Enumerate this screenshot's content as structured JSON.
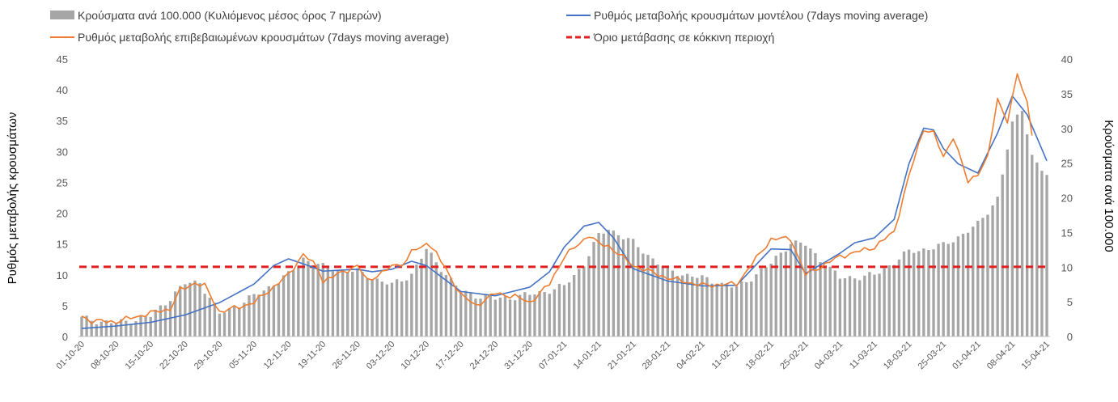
{
  "chart_data": {
    "type": "bar+line",
    "title": "",
    "legend": {
      "placement": "top",
      "entries": [
        {
          "name": "Κρούσματα ανά 100.000 (Κυλιόμενος μέσος όρος 7 ημερών)",
          "kind": "bar",
          "color": "#a6a6a6"
        },
        {
          "name": "Ρυθμός μεταβολής κρουσμάτων μοντέλου (7days moving average)",
          "kind": "line",
          "color": "#4472c4"
        },
        {
          "name": "Ρυθμός μεταβολής επιβεβαιωμένων κρουσμάτων (7days moving average)",
          "kind": "line",
          "color": "#ed7d31"
        },
        {
          "name": "Όριο μετάβασης σε κόκκινη περιοχή",
          "kind": "dashed",
          "color": "#e02020"
        }
      ]
    },
    "ylabel_left": "Ρυθμός μεταβολής κρουσμάτων",
    "ylabel_right": "Κρούσματα ανά 100.000",
    "ylim_left": [
      0,
      45
    ],
    "ylim_right": [
      0,
      40
    ],
    "yticks_left": [
      "0",
      "5",
      "10",
      "15",
      "20",
      "25",
      "30",
      "35",
      "40",
      "45"
    ],
    "yticks_right": [
      "0",
      "5",
      "10",
      "15",
      "20",
      "25",
      "30",
      "35",
      "40"
    ],
    "x_tick_labels": [
      "01-10-20",
      "08-10-20",
      "15-10-20",
      "22-10-20",
      "29-10-20",
      "05-11-20",
      "12-11-20",
      "19-11-20",
      "26-11-20",
      "03-12-20",
      "10-12-20",
      "17-12-20",
      "24-12-20",
      "31-12-20",
      "07-01-21",
      "14-01-21",
      "21-01-21",
      "28-01-21",
      "04-02-21",
      "11-02-21",
      "18-02-21",
      "25-02-21",
      "04-03-21",
      "11-03-21",
      "18-03-21",
      "25-03-21",
      "01-04-21",
      "08-04-21",
      "15-04-21"
    ],
    "days": 197,
    "threshold_left": 11.3,
    "bar_keys_right_axis": [
      [
        0,
        2.6
      ],
      [
        7,
        1.9
      ],
      [
        14,
        2.9
      ],
      [
        21,
        7.6
      ],
      [
        24,
        7.9
      ],
      [
        28,
        3.2
      ],
      [
        35,
        5.8
      ],
      [
        42,
        8.9
      ],
      [
        45,
        11.3
      ],
      [
        49,
        10.0
      ],
      [
        56,
        9.3
      ],
      [
        63,
        7.4
      ],
      [
        67,
        9.0
      ],
      [
        70,
        12.5
      ],
      [
        77,
        6.4
      ],
      [
        84,
        5.4
      ],
      [
        91,
        6.0
      ],
      [
        98,
        7.2
      ],
      [
        102,
        10.5
      ],
      [
        105,
        14.5
      ],
      [
        107,
        15.6
      ],
      [
        112,
        13.5
      ],
      [
        119,
        9.5
      ],
      [
        126,
        8.4
      ],
      [
        133,
        7.0
      ],
      [
        140,
        10.5
      ],
      [
        144,
        13.6
      ],
      [
        147,
        13.2
      ],
      [
        154,
        8.4
      ],
      [
        161,
        8.8
      ],
      [
        168,
        12.2
      ],
      [
        175,
        13.1
      ],
      [
        182,
        16.1
      ],
      [
        186,
        20.0
      ],
      [
        189,
        30.5
      ],
      [
        191,
        33.0
      ],
      [
        193,
        26.0
      ],
      [
        196,
        23.0
      ]
    ],
    "model_keys_left_axis": [
      [
        0,
        1.3
      ],
      [
        7,
        1.7
      ],
      [
        14,
        2.3
      ],
      [
        21,
        3.5
      ],
      [
        28,
        5.5
      ],
      [
        35,
        8.5
      ],
      [
        39,
        11.5
      ],
      [
        42,
        12.6
      ],
      [
        46,
        11.5
      ],
      [
        49,
        10.6
      ],
      [
        56,
        10.9
      ],
      [
        59,
        10.5
      ],
      [
        63,
        10.9
      ],
      [
        67,
        12.2
      ],
      [
        70,
        11.5
      ],
      [
        77,
        7.3
      ],
      [
        84,
        6.6
      ],
      [
        91,
        8.0
      ],
      [
        95,
        10.5
      ],
      [
        98,
        14.5
      ],
      [
        102,
        17.9
      ],
      [
        105,
        18.5
      ],
      [
        108,
        16.0
      ],
      [
        112,
        11.0
      ],
      [
        119,
        9.0
      ],
      [
        126,
        8.2
      ],
      [
        133,
        8.3
      ],
      [
        140,
        14.2
      ],
      [
        144,
        14.1
      ],
      [
        147,
        10.2
      ],
      [
        154,
        13.5
      ],
      [
        157,
        15.2
      ],
      [
        161,
        16.0
      ],
      [
        165,
        19.0
      ],
      [
        168,
        28.0
      ],
      [
        171,
        33.8
      ],
      [
        173,
        33.5
      ],
      [
        175,
        30.5
      ],
      [
        178,
        28.0
      ],
      [
        182,
        26.5
      ],
      [
        186,
        33.0
      ],
      [
        189,
        39.0
      ],
      [
        192,
        36.0
      ],
      [
        196,
        28.5
      ]
    ],
    "confirmed_keys_left_axis": [
      [
        0,
        3.3
      ],
      [
        2,
        2.5
      ],
      [
        7,
        2.4
      ],
      [
        14,
        3.8
      ],
      [
        18,
        4.5
      ],
      [
        20,
        7.5
      ],
      [
        23,
        8.7
      ],
      [
        25,
        8.2
      ],
      [
        28,
        4.0
      ],
      [
        32,
        4.8
      ],
      [
        35,
        5.5
      ],
      [
        42,
        10.0
      ],
      [
        45,
        13.4
      ],
      [
        48,
        11.0
      ],
      [
        49,
        9.0
      ],
      [
        56,
        11.5
      ],
      [
        58,
        9.0
      ],
      [
        63,
        11.3
      ],
      [
        66,
        12.2
      ],
      [
        67,
        14.0
      ],
      [
        69,
        14.2
      ],
      [
        70,
        15.5
      ],
      [
        72,
        13.5
      ],
      [
        77,
        6.8
      ],
      [
        80,
        5.0
      ],
      [
        84,
        7.0
      ],
      [
        88,
        6.5
      ],
      [
        91,
        5.5
      ],
      [
        95,
        8.5
      ],
      [
        98,
        13.0
      ],
      [
        101,
        15.0
      ],
      [
        103,
        16.5
      ],
      [
        105,
        15.0
      ],
      [
        107,
        14.7
      ],
      [
        112,
        11.5
      ],
      [
        119,
        9.5
      ],
      [
        126,
        8.3
      ],
      [
        133,
        8.5
      ],
      [
        140,
        15.8
      ],
      [
        144,
        15.9
      ],
      [
        147,
        10.0
      ],
      [
        154,
        13.0
      ],
      [
        157,
        13.6
      ],
      [
        161,
        14.5
      ],
      [
        165,
        17.0
      ],
      [
        168,
        26.0
      ],
      [
        171,
        33.7
      ],
      [
        173,
        33.0
      ],
      [
        175,
        29.0
      ],
      [
        177,
        32.5
      ],
      [
        180,
        25.0
      ],
      [
        182,
        26.5
      ],
      [
        184,
        29.0
      ],
      [
        186,
        38.5
      ],
      [
        188,
        35.0
      ],
      [
        189,
        38.5
      ],
      [
        190,
        42.5
      ],
      [
        192,
        38.0
      ],
      [
        193,
        33.0
      ]
    ]
  }
}
